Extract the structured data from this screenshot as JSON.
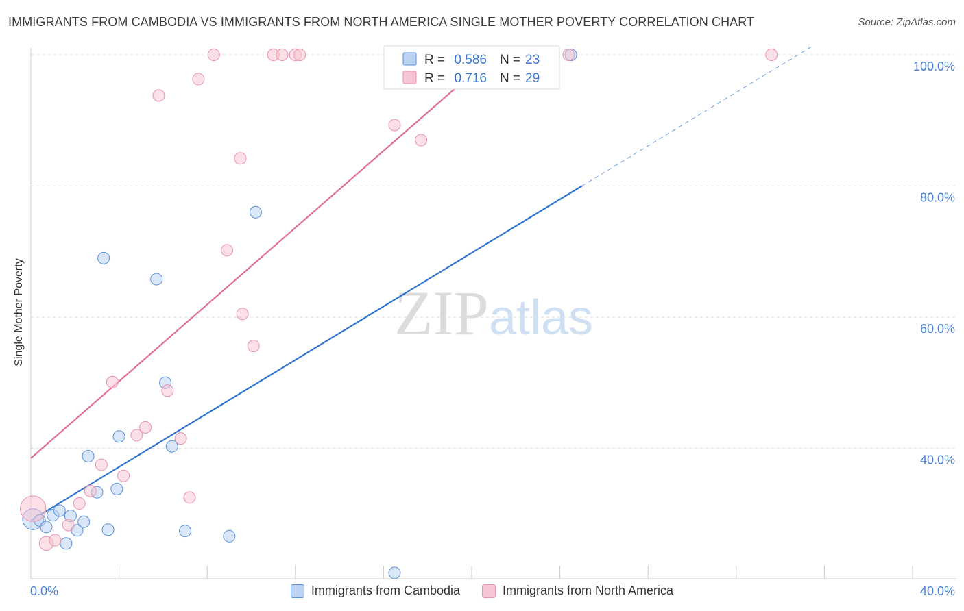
{
  "title": "IMMIGRANTS FROM CAMBODIA VS IMMIGRANTS FROM NORTH AMERICA SINGLE MOTHER POVERTY CORRELATION CHART",
  "source": "Source: ZipAtlas.com",
  "watermark": {
    "zip": "ZIP",
    "atlas": "atlas"
  },
  "chart_data": {
    "type": "scatter",
    "title": "IMMIGRANTS FROM CAMBODIA VS IMMIGRANTS FROM NORTH AMERICA SINGLE MOTHER POVERTY CORRELATION CHART",
    "xlabel": "",
    "ylabel": "Single Mother Poverty",
    "xlim": [
      0,
      40
    ],
    "ylim": [
      22,
      101
    ],
    "x_tick_labels": [
      "0.0%",
      "40.0%"
    ],
    "y_ticks": [
      40,
      60,
      80,
      100
    ],
    "y_tick_labels": [
      "40.0%",
      "60.0%",
      "80.0%",
      "100.0%"
    ],
    "legend": [
      {
        "name": "Immigrants from Cambodia",
        "r_label": "R =",
        "r_value": "0.586",
        "n_label": "N =",
        "n_value": "23"
      },
      {
        "name": "Immigrants from North America",
        "r_label": "R =",
        "r_value": "0.716",
        "n_label": "N =",
        "n_value": "29"
      }
    ],
    "series": [
      {
        "name": "Immigrants from Cambodia",
        "color": "#5b8fd6",
        "fill": "#bcd3f2",
        "line_color": "#2f74d0",
        "trend": {
          "x0": 0,
          "y0": 29.0,
          "x1": 25.0,
          "y1": 80.0,
          "dash_to_x": 35.5
        },
        "points": [
          {
            "x": 0.1,
            "y": 29.2,
            "s": 1.8
          },
          {
            "x": 0.4,
            "y": 29.0,
            "s": 1
          },
          {
            "x": 0.7,
            "y": 28.0,
            "s": 1
          },
          {
            "x": 1.0,
            "y": 29.8,
            "s": 1
          },
          {
            "x": 1.3,
            "y": 30.5,
            "s": 1
          },
          {
            "x": 1.6,
            "y": 25.5,
            "s": 1
          },
          {
            "x": 1.8,
            "y": 29.7,
            "s": 1
          },
          {
            "x": 2.1,
            "y": 27.5,
            "s": 1
          },
          {
            "x": 2.4,
            "y": 28.8,
            "s": 1
          },
          {
            "x": 2.6,
            "y": 38.8,
            "s": 1
          },
          {
            "x": 3.0,
            "y": 33.3,
            "s": 1
          },
          {
            "x": 3.3,
            "y": 69.0,
            "s": 1
          },
          {
            "x": 3.5,
            "y": 27.6,
            "s": 1
          },
          {
            "x": 3.9,
            "y": 33.8,
            "s": 1
          },
          {
            "x": 4.0,
            "y": 41.8,
            "s": 1
          },
          {
            "x": 5.7,
            "y": 65.8,
            "s": 1
          },
          {
            "x": 6.1,
            "y": 50.0,
            "s": 1
          },
          {
            "x": 6.4,
            "y": 40.3,
            "s": 1
          },
          {
            "x": 7.0,
            "y": 27.4,
            "s": 1
          },
          {
            "x": 9.0,
            "y": 26.6,
            "s": 1
          },
          {
            "x": 10.2,
            "y": 76.0,
            "s": 1
          },
          {
            "x": 16.5,
            "y": 21.0,
            "s": 1
          },
          {
            "x": 24.5,
            "y": 100.0,
            "s": 1
          }
        ]
      },
      {
        "name": "Immigrants from North America",
        "color": "#e892ac",
        "fill": "#f7c6d4",
        "line_color": "#e06e92",
        "trend": {
          "x0": 0,
          "y0": 38.5,
          "x1": 21.0,
          "y1": 100.0
        },
        "points": [
          {
            "x": 0.1,
            "y": 30.8,
            "s": 2.2
          },
          {
            "x": 0.7,
            "y": 25.5,
            "s": 1.2
          },
          {
            "x": 1.1,
            "y": 26.0,
            "s": 1
          },
          {
            "x": 1.7,
            "y": 28.3,
            "s": 1
          },
          {
            "x": 2.2,
            "y": 31.6,
            "s": 1
          },
          {
            "x": 2.7,
            "y": 33.5,
            "s": 1
          },
          {
            "x": 3.2,
            "y": 37.5,
            "s": 1
          },
          {
            "x": 3.7,
            "y": 50.1,
            "s": 1
          },
          {
            "x": 4.2,
            "y": 35.8,
            "s": 1
          },
          {
            "x": 4.8,
            "y": 42.0,
            "s": 1
          },
          {
            "x": 5.2,
            "y": 43.2,
            "s": 1
          },
          {
            "x": 5.8,
            "y": 93.8,
            "s": 1
          },
          {
            "x": 6.2,
            "y": 48.8,
            "s": 1
          },
          {
            "x": 6.8,
            "y": 41.5,
            "s": 1
          },
          {
            "x": 7.2,
            "y": 32.5,
            "s": 1
          },
          {
            "x": 7.6,
            "y": 96.3,
            "s": 1
          },
          {
            "x": 8.3,
            "y": 100.0,
            "s": 1
          },
          {
            "x": 8.9,
            "y": 70.2,
            "s": 1
          },
          {
            "x": 9.5,
            "y": 84.2,
            "s": 1
          },
          {
            "x": 9.6,
            "y": 60.5,
            "s": 1
          },
          {
            "x": 10.1,
            "y": 55.6,
            "s": 1
          },
          {
            "x": 11.0,
            "y": 100.0,
            "s": 1
          },
          {
            "x": 11.4,
            "y": 100.0,
            "s": 1
          },
          {
            "x": 12.0,
            "y": 100.0,
            "s": 1
          },
          {
            "x": 12.2,
            "y": 100.0,
            "s": 1
          },
          {
            "x": 16.5,
            "y": 89.3,
            "s": 1
          },
          {
            "x": 17.7,
            "y": 87.0,
            "s": 1
          },
          {
            "x": 24.4,
            "y": 100.0,
            "s": 1
          },
          {
            "x": 33.6,
            "y": 100.0,
            "s": 1
          }
        ]
      }
    ]
  }
}
